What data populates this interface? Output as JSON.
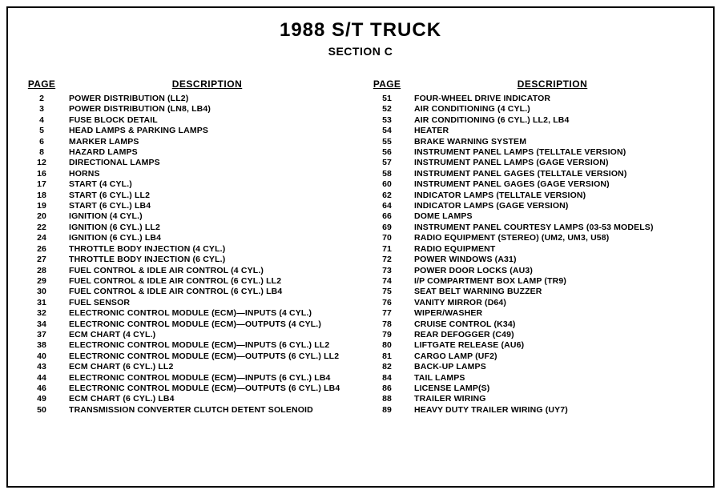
{
  "title": "1988 S/T TRUCK",
  "subtitle": "SECTION C",
  "headers": {
    "page": "PAGE",
    "description": "DESCRIPTION"
  },
  "left": [
    {
      "page": "2",
      "desc": "POWER DISTRIBUTION (LL2)"
    },
    {
      "page": "3",
      "desc": "POWER DISTRIBUTION (LN8, LB4)"
    },
    {
      "page": "4",
      "desc": "FUSE BLOCK DETAIL"
    },
    {
      "page": "5",
      "desc": "HEAD LAMPS & PARKING LAMPS"
    },
    {
      "page": "6",
      "desc": "MARKER LAMPS"
    },
    {
      "page": "8",
      "desc": "HAZARD LAMPS"
    },
    {
      "page": "12",
      "desc": "DIRECTIONAL LAMPS"
    },
    {
      "page": "16",
      "desc": "HORNS"
    },
    {
      "page": "17",
      "desc": "START (4 CYL.)"
    },
    {
      "page": "18",
      "desc": "START (6 CYL.) LL2"
    },
    {
      "page": "19",
      "desc": "START (6 CYL.) LB4"
    },
    {
      "page": "20",
      "desc": "IGNITION (4 CYL.)"
    },
    {
      "page": "22",
      "desc": "IGNITION (6 CYL.) LL2"
    },
    {
      "page": "24",
      "desc": "IGNITION (6 CYL.) LB4"
    },
    {
      "page": "26",
      "desc": "THROTTLE BODY INJECTION (4 CYL.)"
    },
    {
      "page": "27",
      "desc": "THROTTLE BODY INJECTION (6 CYL.)"
    },
    {
      "page": "28",
      "desc": "FUEL CONTROL & IDLE AIR CONTROL (4 CYL.)"
    },
    {
      "page": "29",
      "desc": "FUEL CONTROL & IDLE AIR CONTROL (6 CYL.) LL2"
    },
    {
      "page": "30",
      "desc": "FUEL CONTROL & IDLE AIR CONTROL (6 CYL.) LB4"
    },
    {
      "page": "31",
      "desc": "FUEL SENSOR"
    },
    {
      "page": "32",
      "desc": "ELECTRONIC CONTROL MODULE (ECM)—INPUTS (4 CYL.)"
    },
    {
      "page": "34",
      "desc": "ELECTRONIC CONTROL MODULE (ECM)—OUTPUTS (4 CYL.)"
    },
    {
      "page": "37",
      "desc": "ECM CHART (4 CYL.)"
    },
    {
      "page": "38",
      "desc": "ELECTRONIC CONTROL MODULE (ECM)—INPUTS (6 CYL.) LL2"
    },
    {
      "page": "40",
      "desc": "ELECTRONIC CONTROL MODULE (ECM)—OUTPUTS (6 CYL.) LL2"
    },
    {
      "page": "43",
      "desc": "ECM CHART (6 CYL.) LL2"
    },
    {
      "page": "44",
      "desc": "ELECTRONIC CONTROL MODULE (ECM)—INPUTS (6 CYL.) LB4"
    },
    {
      "page": "46",
      "desc": "ELECTRONIC CONTROL MODULE (ECM)—OUTPUTS (6 CYL.) LB4"
    },
    {
      "page": "49",
      "desc": "ECM CHART (6 CYL.) LB4"
    },
    {
      "page": "50",
      "desc": "TRANSMISSION CONVERTER CLUTCH DETENT SOLENOID"
    }
  ],
  "right": [
    {
      "page": "51",
      "desc": "FOUR-WHEEL DRIVE INDICATOR"
    },
    {
      "page": "52",
      "desc": "AIR CONDITIONING (4 CYL.)"
    },
    {
      "page": "53",
      "desc": "AIR CONDITIONING (6 CYL.) LL2, LB4"
    },
    {
      "page": "54",
      "desc": "HEATER"
    },
    {
      "page": "55",
      "desc": "BRAKE WARNING SYSTEM"
    },
    {
      "page": "56",
      "desc": "INSTRUMENT PANEL LAMPS (TELLTALE VERSION)"
    },
    {
      "page": "57",
      "desc": "INSTRUMENT PANEL LAMPS (GAGE VERSION)"
    },
    {
      "page": "58",
      "desc": "INSTRUMENT PANEL GAGES (TELLTALE VERSION)"
    },
    {
      "page": "60",
      "desc": "INSTRUMENT PANEL GAGES (GAGE VERSION)"
    },
    {
      "page": "62",
      "desc": "INDICATOR LAMPS (TELLTALE VERSION)"
    },
    {
      "page": "64",
      "desc": "INDICATOR LAMPS (GAGE VERSION)"
    },
    {
      "page": "66",
      "desc": "DOME LAMPS"
    },
    {
      "page": "69",
      "desc": "INSTRUMENT PANEL COURTESY LAMPS (03-53 MODELS)"
    },
    {
      "page": "70",
      "desc": "RADIO EQUIPMENT (STEREO) (UM2, UM3, U58)"
    },
    {
      "page": "71",
      "desc": "RADIO EQUIPMENT"
    },
    {
      "page": "72",
      "desc": "POWER WINDOWS (A31)"
    },
    {
      "page": "73",
      "desc": "POWER DOOR LOCKS (AU3)"
    },
    {
      "page": "74",
      "desc": "I/P COMPARTMENT BOX LAMP (TR9)"
    },
    {
      "page": "75",
      "desc": "SEAT BELT WARNING BUZZER"
    },
    {
      "page": "76",
      "desc": "VANITY MIRROR (D64)"
    },
    {
      "page": "77",
      "desc": "WIPER/WASHER"
    },
    {
      "page": "78",
      "desc": "CRUISE CONTROL (K34)"
    },
    {
      "page": "79",
      "desc": "REAR DEFOGGER (C49)"
    },
    {
      "page": "80",
      "desc": "LIFTGATE RELEASE (AU6)"
    },
    {
      "page": "81",
      "desc": "CARGO LAMP (UF2)"
    },
    {
      "page": "82",
      "desc": "BACK-UP LAMPS"
    },
    {
      "page": "84",
      "desc": "TAIL LAMPS"
    },
    {
      "page": "86",
      "desc": "LICENSE LAMP(S)"
    },
    {
      "page": "88",
      "desc": "TRAILER WIRING"
    },
    {
      "page": "89",
      "desc": "HEAVY DUTY TRAILER WIRING (UY7)"
    }
  ]
}
